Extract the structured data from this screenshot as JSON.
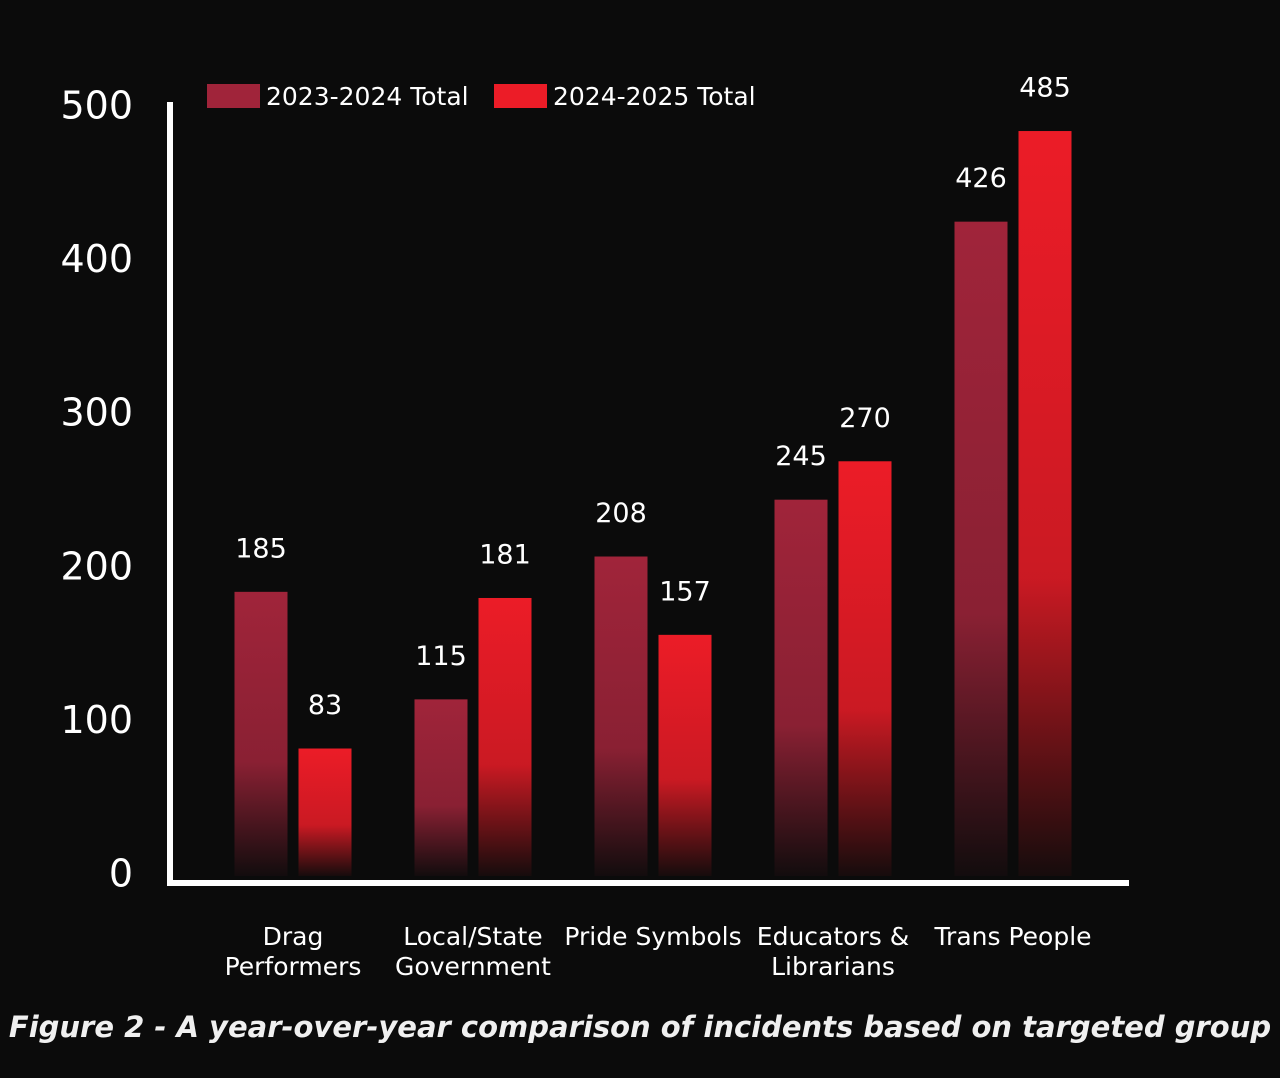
{
  "chart_data": {
    "type": "bar",
    "caption": "Figure 2 - A year-over-year comparison of incidents based on targeted group",
    "categories": [
      "Drag Performers",
      "Local/State Government",
      "Pride Symbols",
      "Educators & Librarians",
      "Trans People"
    ],
    "series": [
      {
        "name": "2023-2024 Total",
        "color": "#a0243a",
        "values": [
          185,
          115,
          208,
          245,
          426
        ]
      },
      {
        "name": "2024-2025 Total",
        "color": "#ec1c27",
        "values": [
          83,
          181,
          157,
          270,
          485
        ]
      }
    ],
    "ylim": [
      0,
      500
    ],
    "yticks": [
      0,
      100,
      200,
      300,
      400,
      500
    ],
    "grid": false
  }
}
